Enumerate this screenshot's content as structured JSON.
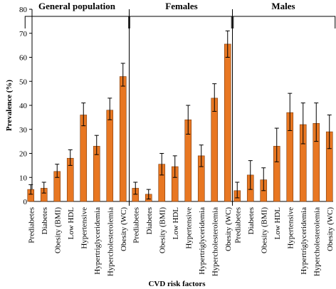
{
  "chart_data": {
    "type": "bar",
    "title": "",
    "xlabel": "CVD risk factors",
    "ylabel": "Prevalence (%)",
    "ylim": [
      0,
      80
    ],
    "yticks": [
      0,
      10,
      20,
      30,
      40,
      50,
      60,
      70,
      80
    ],
    "grid": false,
    "bar_color": "#E87722",
    "bar_edge_color": "#7a3a0c",
    "groups": [
      {
        "name": "General population",
        "categories": [
          "Prediabetes",
          "Diabetes",
          "Obesity (BMI)",
          "Low HDL",
          "Hypertensive",
          "Hypertriglyceridemia",
          "Hypercholesterolemia",
          "Obesity (WC)"
        ],
        "values": [
          5.0,
          5.5,
          12.5,
          18.0,
          36.0,
          23.0,
          38.0,
          52.0
        ],
        "error_high": [
          7.0,
          8.0,
          15.5,
          21.5,
          41.0,
          27.5,
          43.0,
          57.5
        ],
        "error_low": [
          3.0,
          3.5,
          10.0,
          15.0,
          31.5,
          19.5,
          34.0,
          48.0
        ]
      },
      {
        "name": "Females",
        "categories": [
          "Prediabetes",
          "Diabetes",
          "Obesity (BMI)",
          "Low HDL",
          "Hypertensive",
          "Hypertriglyceridemia",
          "Hypercholesterolemia",
          "Obesity (WC)"
        ],
        "values": [
          5.5,
          3.0,
          15.5,
          14.5,
          34.0,
          19.0,
          43.0,
          65.5
        ],
        "error_high": [
          8.0,
          5.0,
          20.0,
          19.0,
          40.0,
          23.5,
          49.0,
          71.0
        ],
        "error_low": [
          3.0,
          1.0,
          11.0,
          10.0,
          28.0,
          14.5,
          37.5,
          60.0
        ]
      },
      {
        "name": "Males",
        "categories": [
          "Prediabetes",
          "Diabetes",
          "Obesity (BMI)",
          "Low HDL",
          "Hypertensive",
          "Hypertriglyceridemia",
          "Hypercholesterolemia",
          "Obesity (WC)"
        ],
        "values": [
          4.5,
          11.0,
          9.0,
          23.0,
          37.0,
          32.0,
          32.5,
          29.0
        ],
        "error_high": [
          8.0,
          17.0,
          14.0,
          30.5,
          45.0,
          41.0,
          41.0,
          36.0
        ],
        "error_low": [
          1.5,
          5.0,
          4.5,
          16.5,
          29.5,
          24.0,
          25.0,
          22.0
        ]
      }
    ]
  }
}
